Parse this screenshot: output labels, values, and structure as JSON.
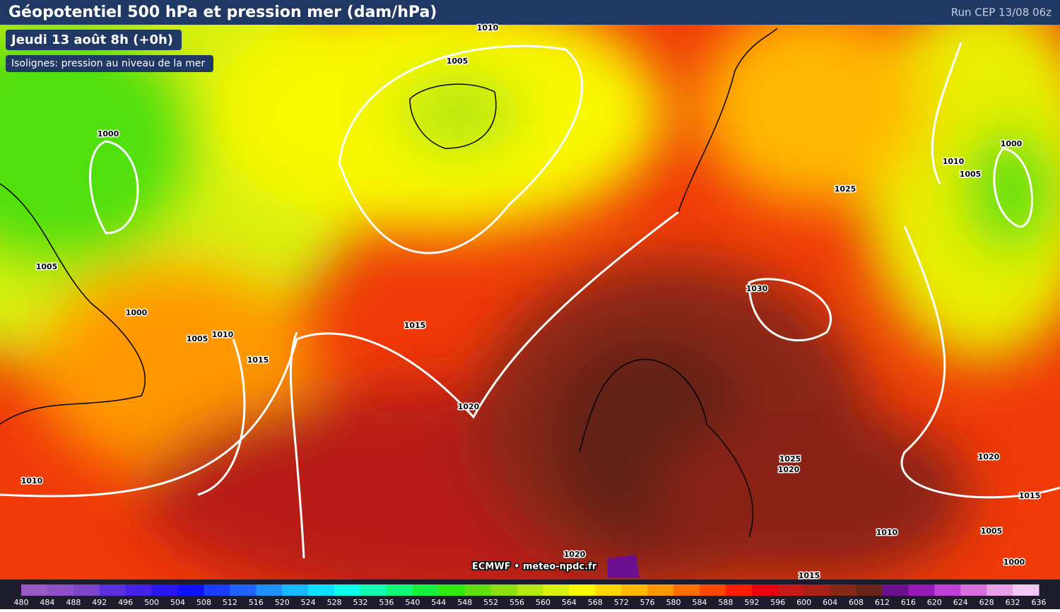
{
  "header": {
    "title": "Géopotentiel 500 hPa et pression mer (dam/hPa)",
    "run": "Run CEP 13/08 06z"
  },
  "date_label": "Jeudi 13 août 8h (+0h)",
  "isolines_label": "Isolignes: pression au niveau de la mer",
  "isobar_labels": [
    1010,
    1005,
    1000,
    1005,
    1000,
    1005,
    1010,
    1015,
    1015,
    1020,
    1010,
    1025,
    1010,
    1005,
    1000,
    1030,
    1025,
    1020,
    1020,
    1015,
    1010,
    1005,
    1000,
    1020,
    1015
  ],
  "attribution": "ECMWF • meteo-npdc.fr",
  "colorbar": {
    "ticks": [
      480,
      484,
      488,
      492,
      496,
      500,
      504,
      508,
      512,
      516,
      520,
      524,
      528,
      532,
      536,
      540,
      544,
      548,
      552,
      556,
      560,
      564,
      568,
      572,
      576,
      580,
      584,
      588,
      592,
      596,
      600,
      604,
      608,
      612,
      616,
      620,
      624,
      628,
      632,
      636
    ],
    "colors": [
      "#9b59c6",
      "#8e4fc8",
      "#7d45cc",
      "#5a30dc",
      "#4422e8",
      "#2a16f3",
      "#1010ff",
      "#1a3cff",
      "#1f64ff",
      "#1e90ff",
      "#18b8ff",
      "#10e0ff",
      "#0cffe8",
      "#10ffb0",
      "#14f878",
      "#18f040",
      "#30e810",
      "#60e010",
      "#8ce010",
      "#b4e810",
      "#d8f010",
      "#f8f800",
      "#ffd800",
      "#ffb800",
      "#ff9800",
      "#ff7000",
      "#ff4800",
      "#ff1e00",
      "#e80010",
      "#c81818",
      "#a82018",
      "#882818",
      "#6a2418",
      "#6c1090",
      "#9818b8",
      "#c040d8",
      "#d870e0",
      "#e8a0e8",
      "#f4c8f4"
    ]
  }
}
